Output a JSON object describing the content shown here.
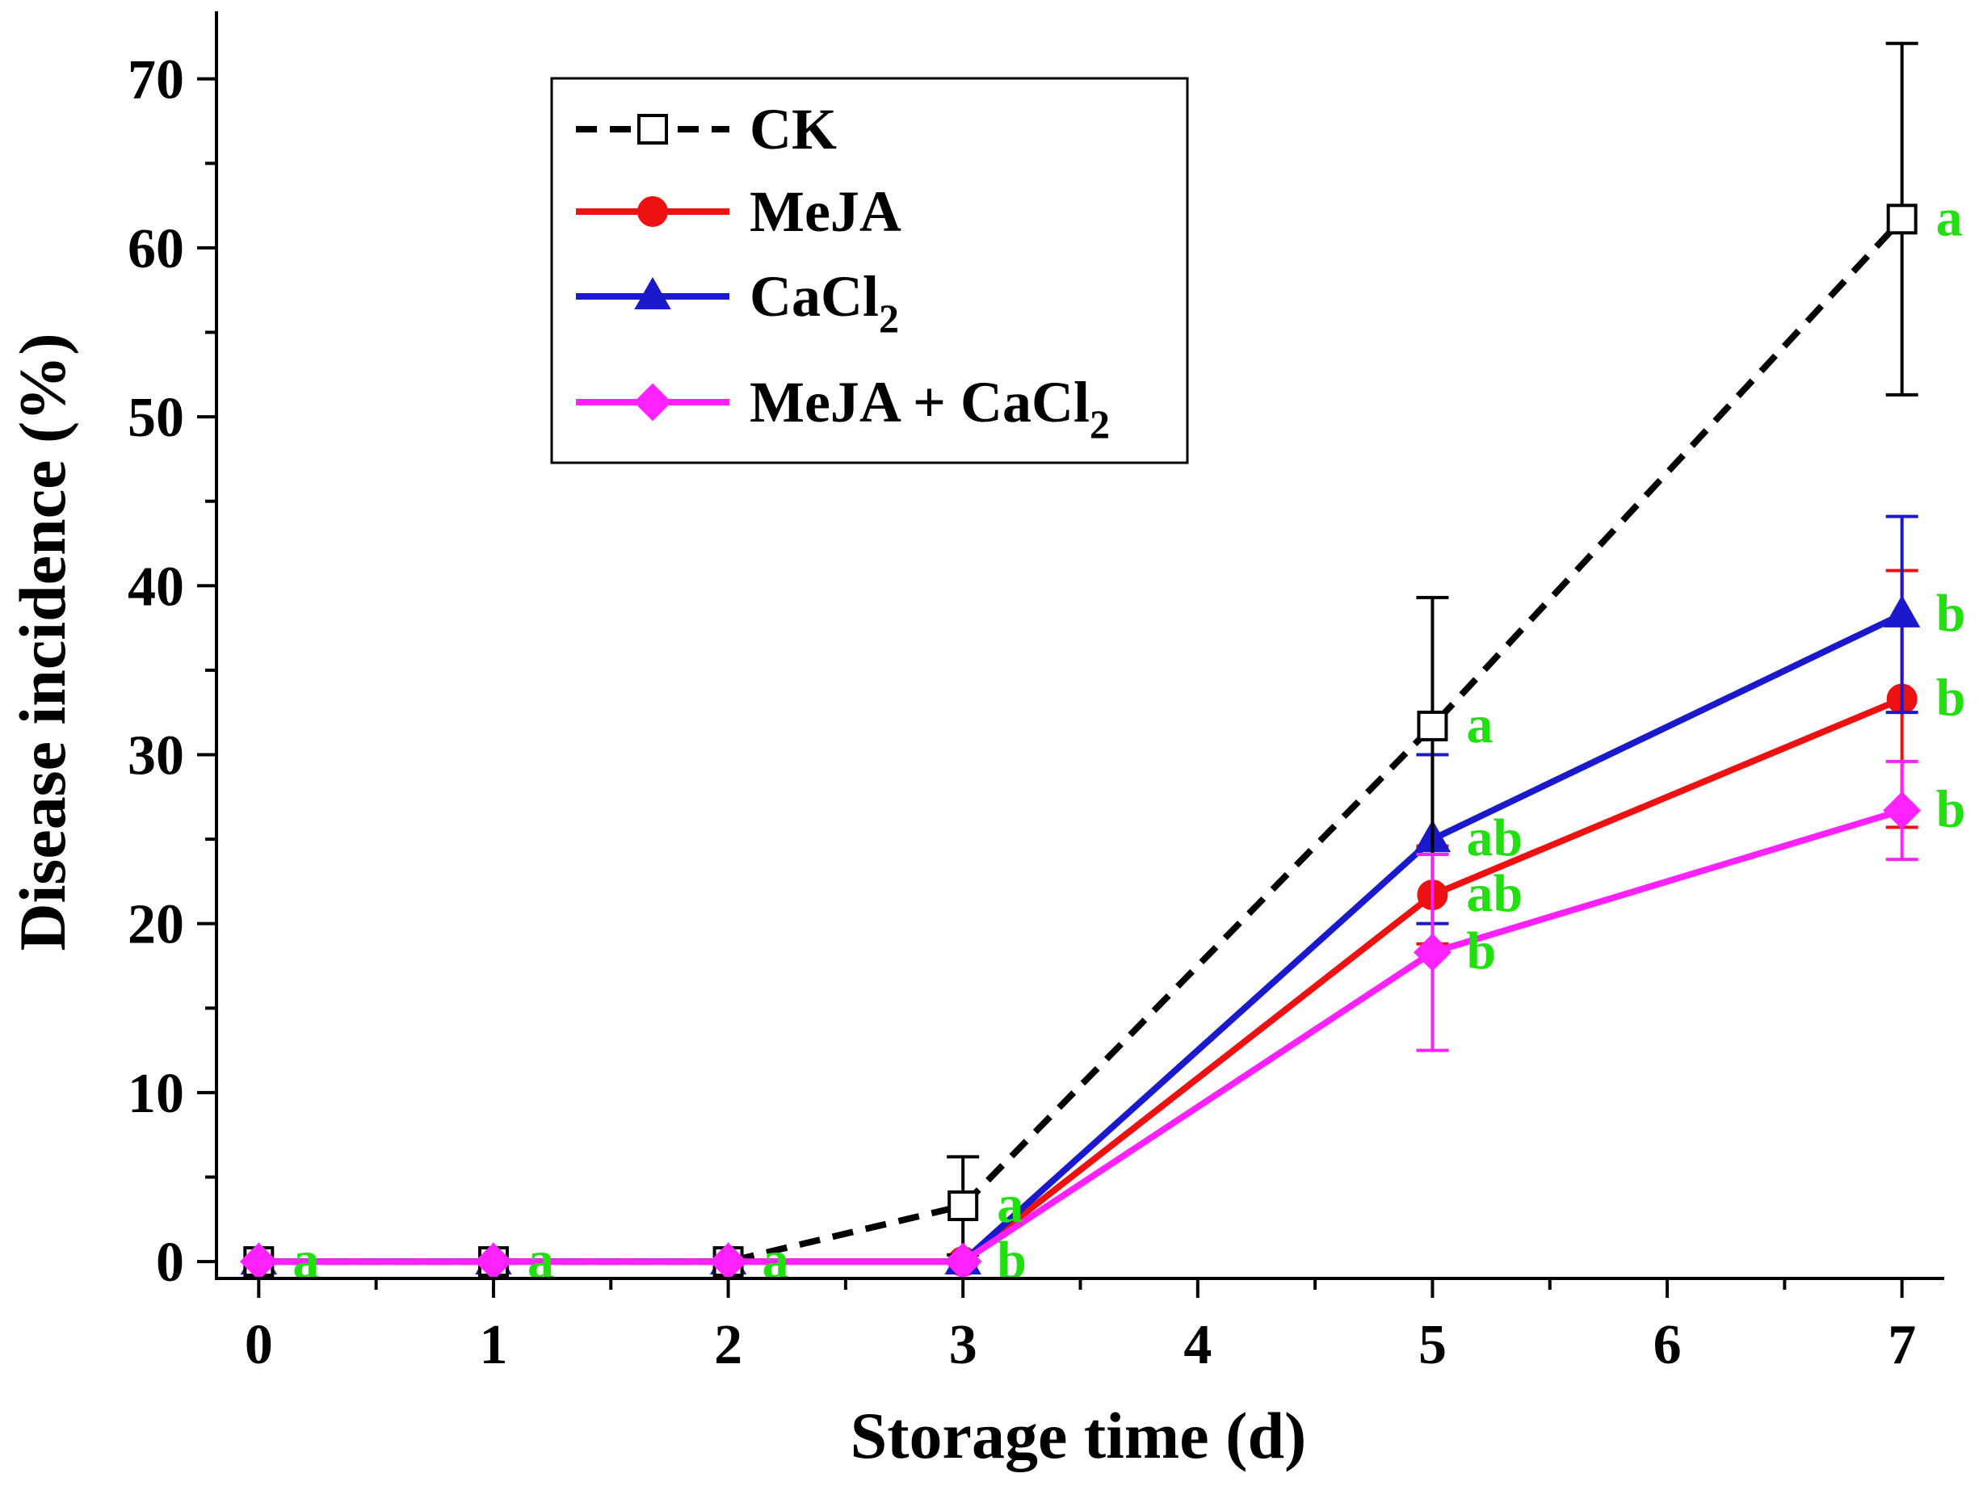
{
  "chart_data": {
    "type": "line",
    "title": "",
    "xlabel": "Storage time (d)",
    "ylabel": "Disease incidence (%)",
    "x": [
      0,
      1,
      2,
      3,
      5,
      7
    ],
    "x_ticks": [
      "0",
      "1",
      "2",
      "3",
      "4",
      "5",
      "6",
      "7"
    ],
    "xlim": [
      -0.18,
      7.18
    ],
    "ylim": [
      -1,
      74
    ],
    "y_ticks": [
      "0",
      "10",
      "20",
      "30",
      "40",
      "50",
      "60",
      "70"
    ],
    "grid": false,
    "legend_position": "top-left",
    "significance_color": "#22e010",
    "series": [
      {
        "name": "CK",
        "legend_main": "CK",
        "legend_sub": "",
        "color": "#000000",
        "line_style": "dashed",
        "marker": "open-square",
        "values": [
          0,
          0,
          0,
          3.3,
          31.7,
          61.7
        ],
        "errors": [
          0,
          0,
          0,
          2.9,
          7.6,
          10.4
        ],
        "letters": [
          "a",
          "a",
          "a",
          "a",
          "a",
          "a"
        ]
      },
      {
        "name": "MeJA",
        "legend_main": "MeJA",
        "legend_sub": "",
        "color": "#ee1111",
        "line_style": "solid",
        "marker": "circle",
        "values": [
          0,
          0,
          0,
          0,
          21.7,
          33.3
        ],
        "errors": [
          0,
          0,
          0,
          0,
          2.9,
          7.6
        ],
        "letters": [
          "",
          "",
          "",
          "",
          "ab",
          "b"
        ]
      },
      {
        "name": "CaCl2",
        "legend_main": "CaCl",
        "legend_sub": "2",
        "color": "#1a1acc",
        "line_style": "solid",
        "marker": "triangle",
        "values": [
          0,
          0,
          0,
          0,
          25.0,
          38.3
        ],
        "errors": [
          0,
          0,
          0,
          0,
          5.0,
          5.8
        ],
        "letters": [
          "",
          "",
          "",
          "",
          "ab",
          "b"
        ]
      },
      {
        "name": "MeJA + CaCl2",
        "legend_main": "MeJA + CaCl",
        "legend_sub": "2",
        "color": "#ff22ff",
        "line_style": "solid",
        "marker": "diamond",
        "values": [
          0,
          0,
          0,
          0,
          18.3,
          26.7
        ],
        "errors": [
          0,
          0,
          0,
          0,
          5.8,
          2.9
        ],
        "letters": [
          "",
          "",
          "",
          "b",
          "b",
          "b"
        ]
      }
    ]
  }
}
